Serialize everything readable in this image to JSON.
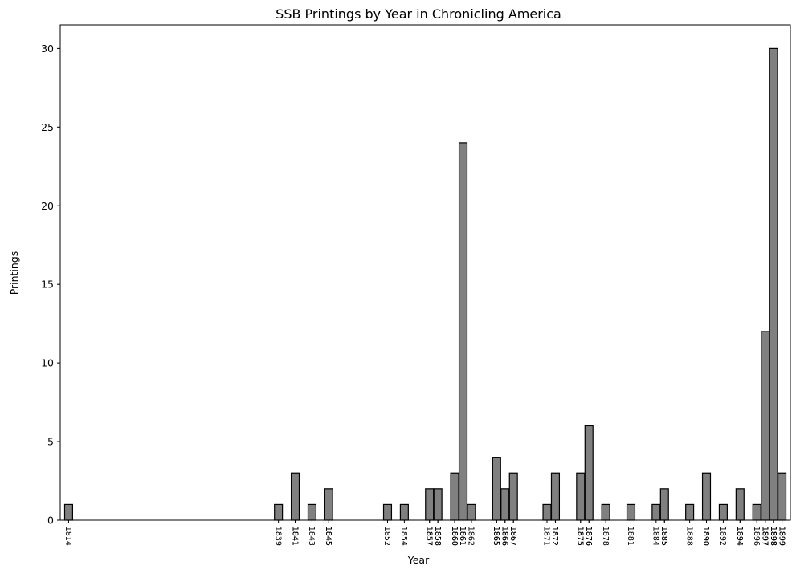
{
  "chart_data": {
    "type": "bar",
    "title": "SSB Printings by Year in Chronicling America",
    "xlabel": "Year",
    "ylabel": "Printings",
    "xlim": [
      1813,
      1900
    ],
    "ylim": [
      0,
      31.5
    ],
    "yticks": [
      0,
      5,
      10,
      15,
      20,
      25,
      30
    ],
    "grid": false,
    "x": [
      1814,
      1839,
      1841,
      1843,
      1845,
      1852,
      1854,
      1857,
      1858,
      1860,
      1861,
      1862,
      1865,
      1866,
      1867,
      1871,
      1872,
      1875,
      1876,
      1878,
      1881,
      1884,
      1885,
      1888,
      1890,
      1892,
      1894,
      1896,
      1897,
      1898,
      1899
    ],
    "values": [
      1,
      1,
      3,
      1,
      2,
      1,
      1,
      2,
      2,
      3,
      24,
      1,
      4,
      2,
      3,
      1,
      3,
      3,
      6,
      1,
      1,
      1,
      2,
      1,
      3,
      1,
      2,
      1,
      12,
      30,
      3
    ],
    "xtick_labels": [
      "1814",
      "1839",
      "1841",
      "1841",
      "1843",
      "1845",
      "1845",
      "1852",
      "1854",
      "1857",
      "1857",
      "1858",
      "1858",
      "1860",
      "1860",
      "1861",
      "1861",
      "1862",
      "1865",
      "1865",
      "1866",
      "1866",
      "1867",
      "1867",
      "1871",
      "1872",
      "1872",
      "1875",
      "1875",
      "1876",
      "1876",
      "1878",
      "1881",
      "1884",
      "1885",
      "1885",
      "1888",
      "1890",
      "1890",
      "1892",
      "1894",
      "1894",
      "1896",
      "1897",
      "1897",
      "1897",
      "1898",
      "1898",
      "1898",
      "1899",
      "1899"
    ]
  }
}
